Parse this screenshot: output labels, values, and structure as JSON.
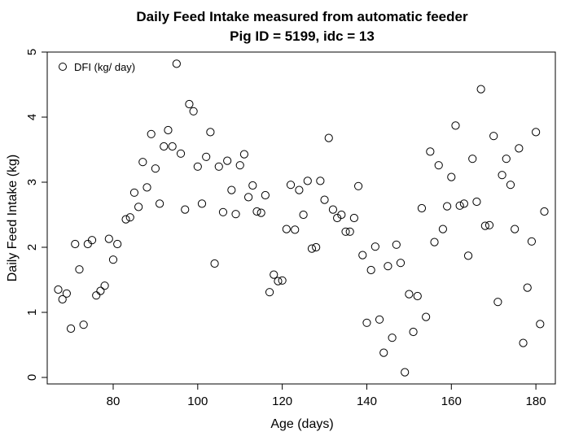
{
  "chart_data": {
    "type": "scatter",
    "title": "Daily Feed Intake measured from automatic feeder",
    "subtitle": "Pig ID = 5199, idc = 13",
    "xlabel": "Age (days)",
    "ylabel": "Daily Feed Intake (kg)",
    "xlim": [
      64.4,
      184.6
    ],
    "ylim": [
      -0.1,
      5.0
    ],
    "x_ticks": [
      80,
      100,
      120,
      140,
      160,
      180
    ],
    "y_ticks": [
      0,
      1,
      2,
      3,
      4,
      5
    ],
    "grid": false,
    "legend": {
      "position": "top-left",
      "entries": [
        "DFI (kg/ day)"
      ]
    },
    "series": [
      {
        "name": "DFI (kg/ day)",
        "marker": "open-circle",
        "color": "#000000",
        "points": [
          [
            67,
            1.35
          ],
          [
            68,
            1.2
          ],
          [
            69,
            1.29
          ],
          [
            70,
            0.75
          ],
          [
            71,
            2.05
          ],
          [
            72,
            1.66
          ],
          [
            73,
            0.81
          ],
          [
            74,
            2.05
          ],
          [
            75,
            2.11
          ],
          [
            76,
            1.26
          ],
          [
            77,
            1.33
          ],
          [
            78,
            1.41
          ],
          [
            79,
            2.13
          ],
          [
            80,
            1.81
          ],
          [
            81,
            2.05
          ],
          [
            83,
            2.43
          ],
          [
            84,
            2.46
          ],
          [
            85,
            2.84
          ],
          [
            86,
            2.62
          ],
          [
            87,
            3.31
          ],
          [
            88,
            2.92
          ],
          [
            89,
            3.74
          ],
          [
            90,
            3.21
          ],
          [
            91,
            2.67
          ],
          [
            92,
            3.55
          ],
          [
            93,
            3.8
          ],
          [
            94,
            3.55
          ],
          [
            95,
            4.82
          ],
          [
            96,
            3.44
          ],
          [
            97,
            2.58
          ],
          [
            98,
            4.2
          ],
          [
            99,
            4.09
          ],
          [
            100,
            3.24
          ],
          [
            101,
            2.67
          ],
          [
            102,
            3.39
          ],
          [
            103,
            3.77
          ],
          [
            104,
            1.75
          ],
          [
            105,
            3.24
          ],
          [
            106,
            2.54
          ],
          [
            107,
            3.33
          ],
          [
            108,
            2.88
          ],
          [
            109,
            2.51
          ],
          [
            110,
            3.26
          ],
          [
            111,
            3.43
          ],
          [
            112,
            2.77
          ],
          [
            113,
            2.95
          ],
          [
            114,
            2.55
          ],
          [
            115,
            2.53
          ],
          [
            116,
            2.8
          ],
          [
            117,
            1.31
          ],
          [
            118,
            1.58
          ],
          [
            119,
            1.48
          ],
          [
            120,
            1.49
          ],
          [
            121,
            2.28
          ],
          [
            122,
            2.96
          ],
          [
            123,
            2.27
          ],
          [
            124,
            2.88
          ],
          [
            125,
            2.5
          ],
          [
            126,
            3.02
          ],
          [
            127,
            1.98
          ],
          [
            128,
            2.0
          ],
          [
            129,
            3.02
          ],
          [
            130,
            2.73
          ],
          [
            131,
            3.68
          ],
          [
            132,
            2.58
          ],
          [
            133,
            2.45
          ],
          [
            134,
            2.5
          ],
          [
            135,
            2.24
          ],
          [
            136,
            2.24
          ],
          [
            137,
            2.45
          ],
          [
            138,
            2.94
          ],
          [
            139,
            1.88
          ],
          [
            140,
            0.84
          ],
          [
            141,
            1.65
          ],
          [
            142,
            2.01
          ],
          [
            143,
            0.89
          ],
          [
            144,
            0.38
          ],
          [
            145,
            1.71
          ],
          [
            146,
            0.61
          ],
          [
            147,
            2.04
          ],
          [
            148,
            1.76
          ],
          [
            149,
            0.08
          ],
          [
            150,
            1.28
          ],
          [
            151,
            0.7
          ],
          [
            152,
            1.25
          ],
          [
            153,
            2.6
          ],
          [
            154,
            0.93
          ],
          [
            155,
            3.47
          ],
          [
            156,
            2.08
          ],
          [
            157,
            3.26
          ],
          [
            158,
            2.28
          ],
          [
            159,
            2.63
          ],
          [
            160,
            3.08
          ],
          [
            161,
            3.87
          ],
          [
            162,
            2.64
          ],
          [
            163,
            2.67
          ],
          [
            164,
            1.87
          ],
          [
            165,
            3.36
          ],
          [
            166,
            2.7
          ],
          [
            167,
            4.43
          ],
          [
            168,
            2.33
          ],
          [
            169,
            2.34
          ],
          [
            170,
            3.71
          ],
          [
            171,
            1.16
          ],
          [
            172,
            3.11
          ],
          [
            173,
            3.36
          ],
          [
            174,
            2.96
          ],
          [
            175,
            2.28
          ],
          [
            176,
            3.52
          ],
          [
            177,
            0.53
          ],
          [
            178,
            1.38
          ],
          [
            179,
            2.09
          ],
          [
            180,
            3.77
          ],
          [
            181,
            0.82
          ],
          [
            182,
            2.55
          ]
        ]
      }
    ]
  }
}
